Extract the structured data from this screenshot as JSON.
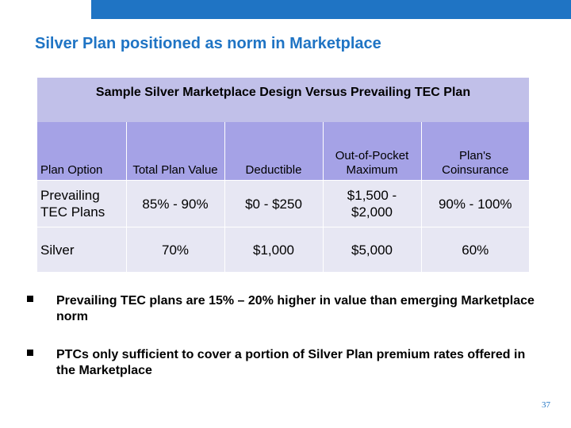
{
  "slide": {
    "title": "Silver Plan positioned as norm in Marketplace",
    "page_number": "37",
    "colors": {
      "accent": "#1f74c4",
      "header_fill": "#a5a2e6",
      "row_fill": "#e7e7f3"
    }
  },
  "table": {
    "heading": "Sample Silver Marketplace Design Versus Prevailing TEC Plan",
    "columns": [
      "Plan Option",
      "Total Plan Value",
      "Deductible",
      "Out-of-Pocket Maximum",
      "Plan's Coinsurance"
    ],
    "rows": [
      [
        "Prevailing TEC Plans",
        "85% - 90%",
        "$0 - $250",
        "$1,500 - $2,000",
        "90% - 100%"
      ],
      [
        "Silver",
        "70%",
        "$1,000",
        "$5,000",
        "60%"
      ]
    ]
  },
  "bullets": [
    "Prevailing TEC plans are 15% – 20% higher in value than emerging Marketplace norm",
    "PTCs only sufficient to cover a portion of Silver Plan premium rates offered in the Marketplace"
  ]
}
